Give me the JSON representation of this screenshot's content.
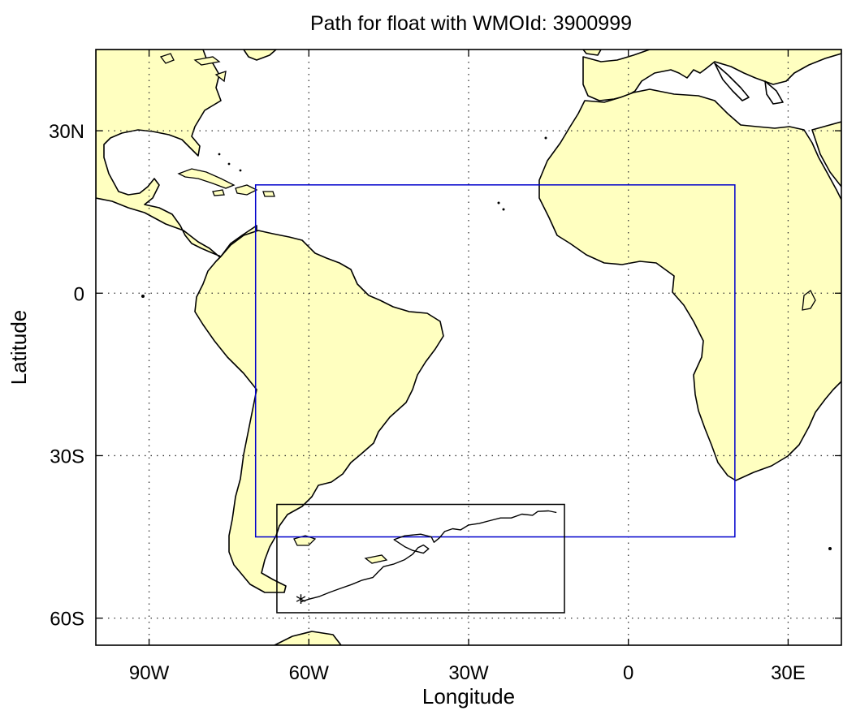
{
  "title": "Path for float with WMOId: 3900999",
  "x_axis": {
    "label": "Longitude",
    "ticks": [
      "90W",
      "60W",
      "30W",
      "0",
      "30E"
    ],
    "tick_values": [
      -90,
      -60,
      -30,
      0,
      30
    ],
    "range": [
      -100,
      40
    ]
  },
  "y_axis": {
    "label": "Latitude",
    "ticks": [
      "30N",
      "0",
      "30S",
      "60S"
    ],
    "tick_values": [
      30,
      0,
      -30,
      -60
    ],
    "range": [
      -65,
      45
    ]
  },
  "grid": "dotted",
  "colors": {
    "land": "#ffffc0",
    "coast": "#000000",
    "region_box": "#0000cc",
    "path_box": "#000000",
    "float_path": "#000000"
  },
  "map_data": {
    "region_box": {
      "lon": [
        -70,
        20
      ],
      "lat": [
        -45,
        20
      ],
      "color": "blue"
    },
    "path_box": {
      "lon": [
        -66,
        -12
      ],
      "lat": [
        -59,
        -39
      ],
      "color": "black"
    },
    "float_start_marker": {
      "symbol": "*",
      "lon": -61.5,
      "lat": -57
    },
    "float_path": [
      [
        -61.5,
        -57
      ],
      [
        -60,
        -56.5
      ],
      [
        -58,
        -56
      ],
      [
        -56,
        -55.2
      ],
      [
        -54,
        -54.5
      ],
      [
        -52,
        -53.8
      ],
      [
        -50,
        -53
      ],
      [
        -48,
        -52.5
      ],
      [
        -47,
        -51.5
      ],
      [
        -46,
        -50.5
      ],
      [
        -44,
        -50
      ],
      [
        -42,
        -49.2
      ],
      [
        -40.5,
        -48.2
      ],
      [
        -39.5,
        -47
      ],
      [
        -38.5,
        -46.5
      ],
      [
        -37.5,
        -47.2
      ],
      [
        -38.5,
        -48
      ],
      [
        -40.5,
        -47.5
      ],
      [
        -42,
        -46.8
      ],
      [
        -44,
        -45.5
      ],
      [
        -42,
        -44.8
      ],
      [
        -39,
        -44.5
      ],
      [
        -37,
        -45
      ],
      [
        -36.5,
        -46
      ],
      [
        -35.5,
        -45.2
      ],
      [
        -34.5,
        -44
      ],
      [
        -33,
        -43.5
      ],
      [
        -31.5,
        -43.7
      ],
      [
        -30,
        -42.8
      ],
      [
        -28,
        -42.5
      ],
      [
        -26,
        -42
      ],
      [
        -24,
        -41.5
      ],
      [
        -22,
        -41.5
      ],
      [
        -20,
        -40.8
      ],
      [
        -18,
        -41
      ],
      [
        -17,
        -40.3
      ],
      [
        -15,
        -40.2
      ],
      [
        -13.5,
        -40.5
      ]
    ]
  }
}
